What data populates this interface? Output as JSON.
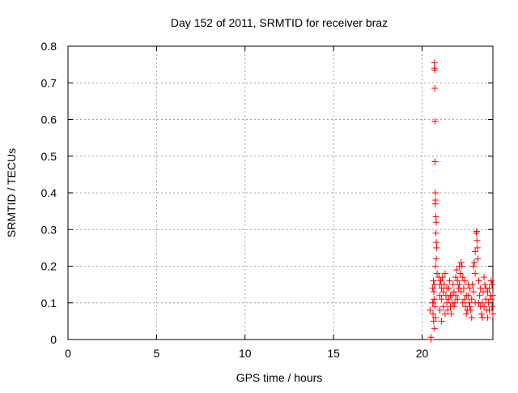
{
  "chart_data": {
    "type": "scatter",
    "title": "Day 152 of 2011, SRMTID for receiver braz",
    "xlabel": "GPS time / hours",
    "ylabel": "SRMTID / TECUs",
    "xlim": [
      0,
      24
    ],
    "ylim": [
      0,
      0.8
    ],
    "xticks": [
      0,
      5,
      10,
      15,
      20
    ],
    "yticks": [
      0,
      0.1,
      0.2,
      0.3,
      0.4,
      0.5,
      0.6,
      0.7,
      0.8
    ],
    "ytick_labels": [
      "0",
      "0.1",
      "0.2",
      "0.3",
      "0.4",
      "0.5",
      "0.6",
      "0.7",
      "0.8"
    ],
    "grid": true,
    "marker": "plus",
    "color": "#ff0000",
    "points": [
      [
        20.5,
        0.0
      ],
      [
        20.5,
        0.006
      ],
      [
        20.45,
        0.08
      ],
      [
        20.6,
        0.1
      ],
      [
        20.62,
        0.07
      ],
      [
        20.65,
        0.05
      ],
      [
        20.66,
        0.13
      ],
      [
        20.7,
        0.755
      ],
      [
        20.7,
        0.74
      ],
      [
        20.72,
        0.735
      ],
      [
        20.72,
        0.685
      ],
      [
        20.73,
        0.595
      ],
      [
        20.73,
        0.485
      ],
      [
        20.75,
        0.4
      ],
      [
        20.76,
        0.38
      ],
      [
        20.74,
        0.37
      ],
      [
        20.78,
        0.335
      ],
      [
        20.8,
        0.32
      ],
      [
        20.78,
        0.29
      ],
      [
        20.8,
        0.265
      ],
      [
        20.82,
        0.25
      ],
      [
        20.8,
        0.22
      ],
      [
        20.76,
        0.2
      ],
      [
        20.85,
        0.18
      ],
      [
        20.7,
        0.15
      ],
      [
        20.68,
        0.11
      ],
      [
        20.72,
        0.09
      ],
      [
        20.75,
        0.06
      ],
      [
        20.6,
        0.14
      ],
      [
        20.64,
        0.16
      ],
      [
        20.7,
        0.03
      ],
      [
        20.62,
        0.1
      ],
      [
        20.95,
        0.17
      ],
      [
        21.0,
        0.15
      ],
      [
        21.05,
        0.16
      ],
      [
        21.1,
        0.14
      ],
      [
        21.0,
        0.12
      ],
      [
        21.15,
        0.17
      ],
      [
        21.2,
        0.13
      ],
      [
        21.1,
        0.11
      ],
      [
        21.25,
        0.15
      ],
      [
        21.3,
        0.18
      ],
      [
        21.35,
        0.12
      ],
      [
        21.4,
        0.1
      ],
      [
        21.45,
        0.08
      ],
      [
        21.5,
        0.14
      ],
      [
        21.55,
        0.16
      ],
      [
        21.6,
        0.09
      ],
      [
        21.65,
        0.07
      ],
      [
        21.7,
        0.12
      ],
      [
        21.75,
        0.15
      ],
      [
        21.8,
        0.13
      ],
      [
        21.85,
        0.1
      ],
      [
        21.9,
        0.17
      ],
      [
        21.95,
        0.19
      ],
      [
        22.0,
        0.16
      ],
      [
        22.05,
        0.14
      ],
      [
        22.1,
        0.2
      ],
      [
        22.15,
        0.18
      ],
      [
        22.2,
        0.21
      ],
      [
        22.25,
        0.2
      ],
      [
        22.3,
        0.17
      ],
      [
        22.35,
        0.14
      ],
      [
        22.4,
        0.11
      ],
      [
        22.45,
        0.09
      ],
      [
        22.5,
        0.07
      ],
      [
        22.55,
        0.08
      ],
      [
        22.6,
        0.12
      ],
      [
        22.65,
        0.1
      ],
      [
        22.7,
        0.14
      ],
      [
        22.75,
        0.08
      ],
      [
        22.8,
        0.11
      ],
      [
        22.85,
        0.15
      ],
      [
        22.9,
        0.2
      ],
      [
        22.95,
        0.21
      ],
      [
        23.0,
        0.24
      ],
      [
        23.05,
        0.29
      ],
      [
        23.08,
        0.295
      ],
      [
        23.1,
        0.27
      ],
      [
        23.12,
        0.25
      ],
      [
        23.15,
        0.22
      ],
      [
        23.0,
        0.18
      ],
      [
        23.2,
        0.16
      ],
      [
        23.25,
        0.12
      ],
      [
        23.3,
        0.09
      ],
      [
        23.35,
        0.07
      ],
      [
        23.4,
        0.1
      ],
      [
        23.45,
        0.13
      ],
      [
        23.5,
        0.17
      ],
      [
        23.55,
        0.15
      ],
      [
        23.6,
        0.11
      ],
      [
        23.65,
        0.08
      ],
      [
        23.7,
        0.06
      ],
      [
        23.75,
        0.1
      ],
      [
        23.8,
        0.14
      ],
      [
        23.85,
        0.12
      ],
      [
        23.9,
        0.16
      ],
      [
        23.95,
        0.09
      ],
      [
        24.0,
        0.07
      ],
      [
        23.9,
        0.11
      ],
      [
        23.7,
        0.13
      ],
      [
        23.5,
        0.09
      ],
      [
        23.3,
        0.14
      ],
      [
        23.2,
        0.1
      ],
      [
        22.9,
        0.13
      ],
      [
        22.6,
        0.15
      ],
      [
        22.4,
        0.16
      ],
      [
        22.2,
        0.13
      ],
      [
        22.0,
        0.11
      ],
      [
        21.8,
        0.09
      ],
      [
        21.6,
        0.12
      ],
      [
        21.4,
        0.14
      ],
      [
        21.2,
        0.09
      ],
      [
        21.0,
        0.08
      ],
      [
        21.3,
        0.07
      ],
      [
        21.5,
        0.11
      ],
      [
        21.7,
        0.1
      ],
      [
        21.9,
        0.12
      ],
      [
        22.1,
        0.15
      ],
      [
        22.3,
        0.1
      ],
      [
        22.5,
        0.12
      ],
      [
        22.7,
        0.09
      ],
      [
        23.0,
        0.1
      ],
      [
        23.4,
        0.06
      ],
      [
        23.6,
        0.14
      ],
      [
        23.8,
        0.08
      ],
      [
        24.0,
        0.12
      ],
      [
        23.95,
        0.15
      ],
      [
        22.8,
        0.06
      ],
      [
        21.1,
        0.05
      ]
    ]
  }
}
